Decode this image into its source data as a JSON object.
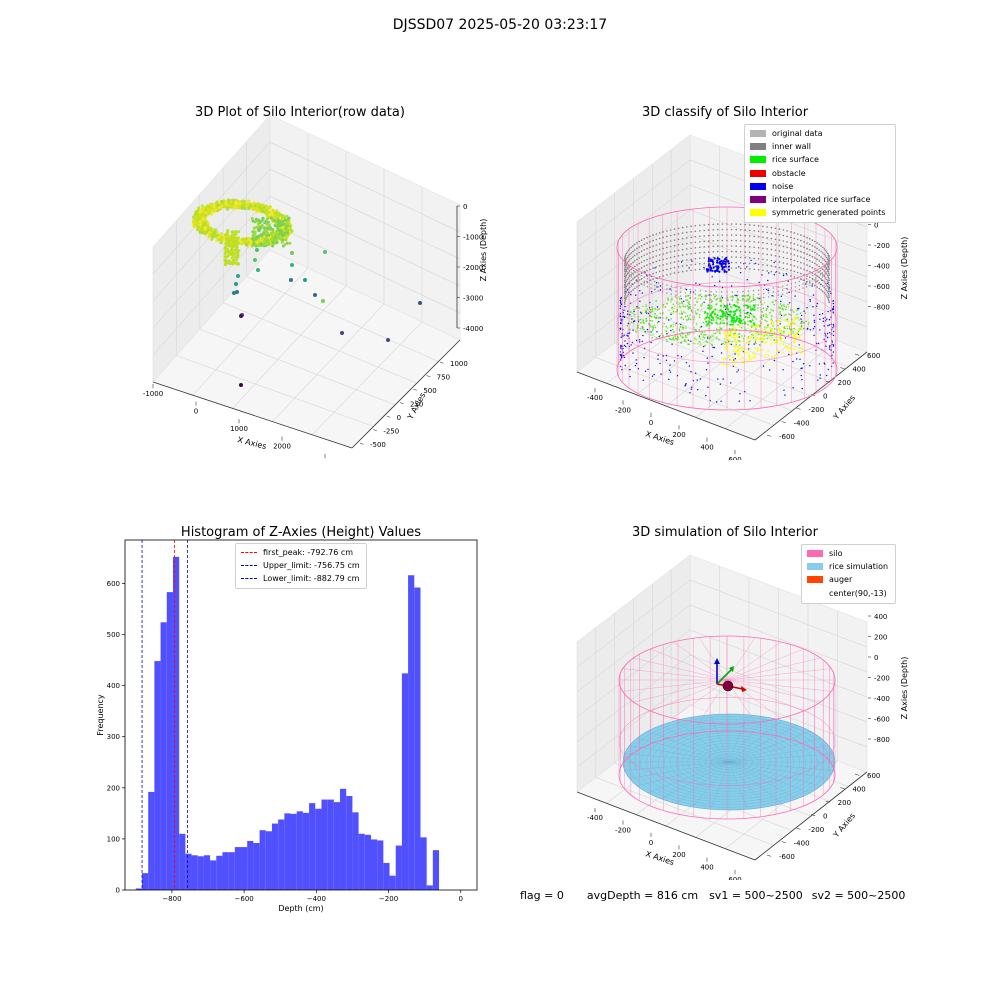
{
  "figure_title": "DJSSD07 2025-05-20 03:23:17",
  "footer": {
    "flag": "flag = 0",
    "avg_depth": "avgDepth = 816 cm",
    "sv1": "sv1 = 500~2500",
    "sv2": "sv2 = 500~2500"
  },
  "chart_data": [
    {
      "type": "scatter",
      "title": "3D Plot of Silo Interior(row data)",
      "xlabel": "X Axies",
      "ylabel": "Y Axies",
      "zlabel": "Z Axies (Depth)",
      "x_ticks": [
        "-1000",
        "0",
        "1000",
        "2000",
        "3000"
      ],
      "y_ticks": [
        "-500",
        "-250",
        "0",
        "250",
        "500",
        "750",
        "1000"
      ],
      "z_ticks": [
        "0",
        "-1000",
        "-2000",
        "-3000",
        "-4000"
      ],
      "xlim": [
        -1000,
        3300
      ],
      "ylim": [
        -600,
        1100
      ],
      "zlim": [
        -4500,
        0
      ]
    },
    {
      "type": "scatter",
      "title": "3D classify of Silo Interior",
      "xlabel": "X Axies",
      "ylabel": "Y Axies",
      "zlabel": "Z Axies (Depth)",
      "x_ticks": [
        "-400",
        "-200",
        "0",
        "200",
        "400",
        "600"
      ],
      "y_ticks": [
        "-600",
        "-400",
        "-200",
        "0",
        "200",
        "400",
        "600"
      ],
      "z_ticks": [
        "200",
        "0",
        "-200",
        "-400",
        "-600",
        "-800"
      ],
      "legend": [
        {
          "name": "original data",
          "color": "#b3b3b3"
        },
        {
          "name": "inner wall",
          "color": "#808080"
        },
        {
          "name": "rice surface",
          "color": "#00ee00"
        },
        {
          "name": "obstacle",
          "color": "#ee0000"
        },
        {
          "name": "noise",
          "color": "#0000ee"
        },
        {
          "name": "interpolated rice surface",
          "color": "#800080"
        },
        {
          "name": "symmetric generated points",
          "color": "#ffff00"
        }
      ],
      "legend_position": "top-right"
    },
    {
      "type": "bar",
      "title": "Histogram of Z-Axies (Height) Values",
      "xlabel": "Depth (cm)",
      "ylabel": "Frequency",
      "bin_start": -900,
      "bin_width": 17.14,
      "values": [
        3,
        33,
        192,
        448,
        524,
        583,
        652,
        110,
        71,
        68,
        66,
        68,
        58,
        67,
        74,
        74,
        84,
        84,
        96,
        92,
        117,
        115,
        130,
        138,
        150,
        149,
        154,
        151,
        170,
        159,
        177,
        177,
        172,
        198,
        184,
        152,
        110,
        108,
        99,
        97,
        53,
        28,
        87,
        424,
        616,
        592,
        103,
        9,
        78
      ],
      "xlim": [
        -930,
        45
      ],
      "ylim": [
        0,
        685
      ],
      "x_ticks": [
        -800,
        -600,
        -400,
        -200,
        0
      ],
      "y_ticks": [
        0,
        100,
        200,
        300,
        400,
        500,
        600
      ],
      "bar_color": "#5050ff",
      "lines": [
        {
          "label": "first_peak: -792.76 cm",
          "x": -792.76,
          "color": "#ff0000"
        },
        {
          "label": "Upper_limit: -756.75 cm",
          "x": -756.75,
          "color": "#0000cc"
        },
        {
          "label": "Lower_limit: -882.79 cm",
          "x": -882.79,
          "color": "#0000cc"
        }
      ],
      "legend_position": "top-center"
    },
    {
      "type": "scatter",
      "title": "3D simulation of Silo Interior",
      "xlabel": "X Axies",
      "ylabel": "Y Axies",
      "zlabel": "Z Axies (Depth)",
      "x_ticks": [
        "-400",
        "-200",
        "0",
        "200",
        "400",
        "600"
      ],
      "y_ticks": [
        "-600",
        "-400",
        "-200",
        "0",
        "200",
        "400",
        "600"
      ],
      "z_ticks": [
        "400",
        "200",
        "0",
        "-200",
        "-400",
        "-600",
        "-800"
      ],
      "legend": [
        {
          "name": "silo",
          "color": "#ff69b4"
        },
        {
          "name": "rice simulation",
          "color": "#87ceeb"
        },
        {
          "name": "auger",
          "color": "#ff4500"
        },
        {
          "name": "center(90,-13)",
          "color": ""
        }
      ],
      "legend_position": "top-right"
    }
  ]
}
